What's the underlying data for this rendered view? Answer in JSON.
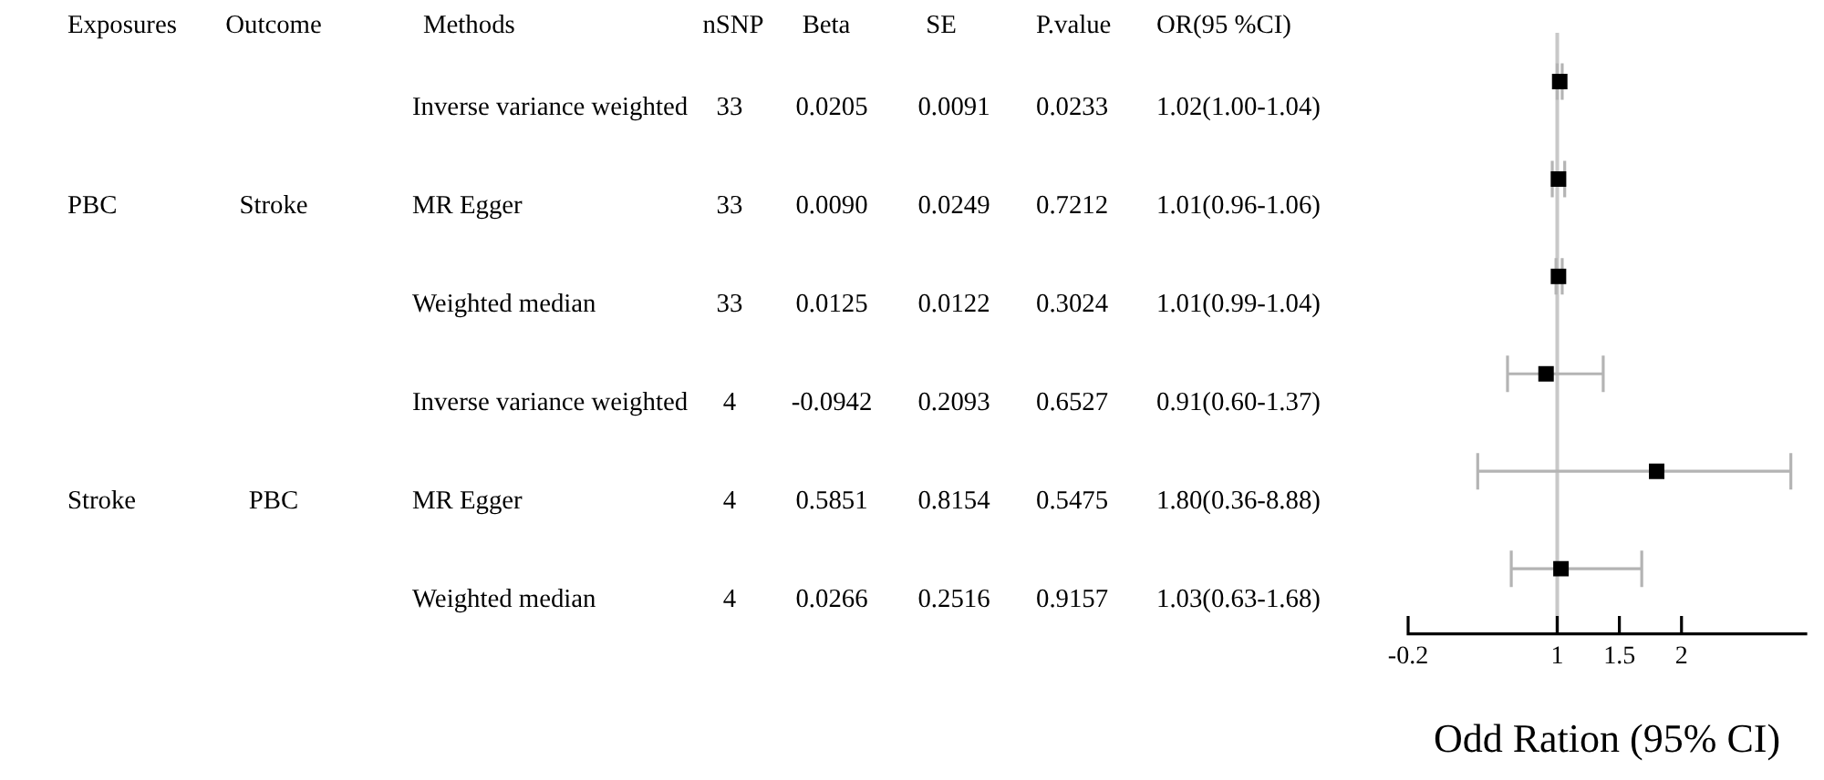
{
  "chart_data": [
    {
      "type": "other",
      "categories": [
        "Exposures",
        "Outcome",
        "Methods",
        "nSNP",
        "Beta",
        "SE",
        "P.value",
        "OR(95 %CI)"
      ],
      "cell_labels": [
        [
          null,
          null,
          "Inverse variance weighted",
          "33",
          "0.0205",
          "0.0091",
          "0.0233",
          "1.02(1.00-1.04)"
        ],
        [
          "PBC",
          "Stroke",
          "MR Egger",
          "33",
          "0.0090",
          "0.0249",
          "0.7212",
          "1.01(0.96-1.06)"
        ],
        [
          null,
          null,
          "Weighted median",
          "33",
          "0.0125",
          "0.0122",
          "0.3024",
          "1.01(0.99-1.04)"
        ],
        [
          null,
          null,
          "Inverse variance weighted",
          "4",
          "-0.0942",
          "0.2093",
          "0.6527",
          "0.91(0.60-1.37)"
        ],
        [
          "Stroke",
          "PBC",
          "MR Egger",
          "4",
          "0.5851",
          "0.8154",
          "0.5475",
          "1.80(0.36-8.88)"
        ],
        [
          null,
          null,
          "Weighted median",
          "4",
          "0.0266",
          "0.2516",
          "0.9157",
          "1.03(0.63-1.68)"
        ]
      ]
    },
    {
      "type": "scatter",
      "orientation": "horizontal",
      "categories": [
        null,
        null,
        null,
        null,
        null,
        null
      ],
      "values": [
        1.02,
        1.01,
        1.01,
        0.91,
        1.8,
        1.03
      ],
      "errors": [
        [
          1.0,
          1.04
        ],
        [
          0.96,
          1.06
        ],
        [
          0.99,
          1.04
        ],
        [
          0.6,
          1.37
        ],
        [
          0.36,
          2.88
        ],
        [
          0.63,
          1.68
        ]
      ],
      "color": "#000000",
      "marker": "square",
      "xlim": [
        -0.2,
        3
      ],
      "xticks": [
        -0.2,
        1,
        1.5,
        2
      ],
      "xlabel": "Odd Ration (95% CI)",
      "ref_lines": [
        {
          "axis": "x",
          "value": 1,
          "color": "#c8c8c8"
        }
      ]
    }
  ]
}
